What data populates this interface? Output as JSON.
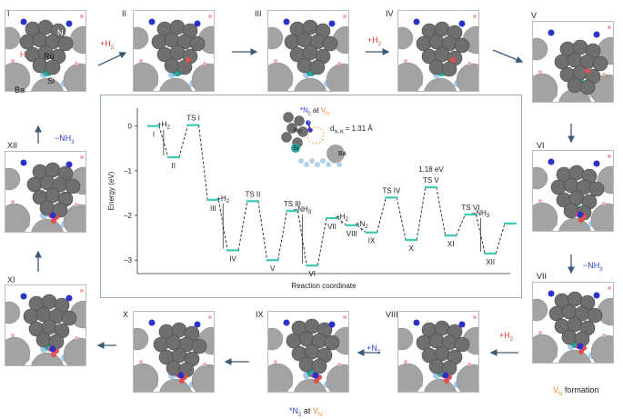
{
  "panels": [
    {
      "id": "I",
      "label": "I"
    },
    {
      "id": "II",
      "label": "II"
    },
    {
      "id": "III",
      "label": "III"
    },
    {
      "id": "IV",
      "label": "IV"
    },
    {
      "id": "V",
      "label": "V"
    },
    {
      "id": "VI",
      "label": "VI"
    },
    {
      "id": "VII",
      "label": "VII"
    },
    {
      "id": "VIII",
      "label": "VIII"
    },
    {
      "id": "IX",
      "label": "IX"
    },
    {
      "id": "X",
      "label": "X"
    },
    {
      "id": "XI",
      "label": "XI"
    },
    {
      "id": "XII",
      "label": "XII"
    }
  ],
  "atom_labels": {
    "ru": "Ru",
    "ba": "Ba",
    "n": "N",
    "h": "H",
    "si": "Si"
  },
  "step_notes": {
    "i_to_ii": "+H",
    "i_to_ii_sub": "2",
    "iii_to_iv": "+H",
    "iii_to_iv_sub": "2",
    "xii_to_i": "−NH",
    "xii_to_i_sub": "3",
    "vi_to_vii": "−NH",
    "vi_to_vii_sub": "3",
    "vii_to_viii": "+H",
    "vii_to_viii_sub": "2",
    "viii_to_ix": "+N",
    "viii_to_ix_sub": "2",
    "vn_formation_pre": "V",
    "vn_formation_sub": "N",
    "vn_formation_post": " formation",
    "n2_at_vn_a": "*N",
    "n2_at_vn_sub": "2",
    "n2_at_vn_b": " at ",
    "n2_at_vn_c": "V",
    "n2_at_vn_csub": "N"
  },
  "inset": {
    "title_a": "*N",
    "title_sub": "2",
    "title_b": " at ",
    "title_c": "V",
    "title_csub": "N",
    "dnn_label": "d",
    "dnn_sub": "N–N",
    "dnn_value": " = 1.31 Å",
    "ru": "Ru",
    "ba": "Ba",
    "n": "N",
    "si": "Si"
  },
  "chart_data": {
    "type": "line",
    "ylabel": "Energy (eV)",
    "xlabel": "Reaction coordinate",
    "ylim": [
      -3.3,
      0.4
    ],
    "yticks": [
      0,
      -1,
      -2,
      -3
    ],
    "states": [
      {
        "label": "I",
        "energy": 0.0
      },
      {
        "label": "II",
        "energy": -0.7
      },
      {
        "label": "TS I",
        "energy": 0.02
      },
      {
        "label": "III",
        "energy": -1.65
      },
      {
        "label": "IV",
        "energy": -2.78
      },
      {
        "label": "TS II",
        "energy": -1.68
      },
      {
        "label": "V",
        "energy": -3.0
      },
      {
        "label": "TS III",
        "energy": -1.9
      },
      {
        "label": "VI",
        "energy": -3.12
      },
      {
        "label": "VII",
        "energy": -2.06
      },
      {
        "label": "VIII",
        "energy": -2.22
      },
      {
        "label": "IX",
        "energy": -2.38
      },
      {
        "label": "TS IV",
        "energy": -1.6
      },
      {
        "label": "X",
        "energy": -2.55
      },
      {
        "label": "TS V",
        "energy": -1.37
      },
      {
        "label": "XI",
        "energy": -2.45
      },
      {
        "label": "TS VI",
        "energy": -1.98
      },
      {
        "label": "XII",
        "energy": -2.85
      },
      {
        "label": "",
        "energy": -2.18
      }
    ],
    "barrier_label": "1.18 eV",
    "annotations": [
      {
        "text": "+H",
        "sub": "2",
        "color": "#e23b2e",
        "between": [
          0,
          1
        ]
      },
      {
        "text": "+H",
        "sub": "2",
        "color": "#e23b2e",
        "between": [
          3,
          4
        ]
      },
      {
        "text": "−NH",
        "sub": "3",
        "color": "#2b3fd8",
        "between": [
          7,
          8
        ]
      },
      {
        "text": "+H",
        "sub": "2",
        "color": "#e23b2e",
        "between": [
          9,
          10
        ]
      },
      {
        "text": "+N",
        "sub": "2",
        "color": "#2b3fd8",
        "between": [
          10,
          11
        ]
      },
      {
        "text": "−NH",
        "sub": "3",
        "color": "#2b3fd8",
        "between": [
          16,
          17
        ]
      }
    ]
  },
  "colors": {
    "ru": "#6f6f6f",
    "ba": "#a3a3a3",
    "n": "#2a32c8",
    "h": "#e05050",
    "si": "#2aa7a0",
    "support": "#7fb4df",
    "level": "#3cc8b4",
    "h2": "#e23b2e",
    "nh3": "#2b3fd8",
    "vn": "#e8892b"
  }
}
